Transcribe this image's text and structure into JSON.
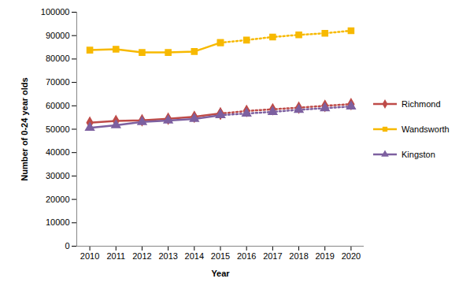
{
  "chart_data": {
    "type": "line",
    "x_label": "Year",
    "y_label": "Number of 0-24 year olds",
    "x": [
      2010,
      2011,
      2012,
      2013,
      2014,
      2015,
      2016,
      2017,
      2018,
      2019,
      2020
    ],
    "xlim": [
      2009.5,
      2020.5
    ],
    "xticks": [
      2010,
      2011,
      2012,
      2013,
      2014,
      2015,
      2016,
      2017,
      2018,
      2019,
      2020
    ],
    "ylim": [
      0,
      100000
    ],
    "yticks": [
      0,
      10000,
      20000,
      30000,
      40000,
      50000,
      60000,
      70000,
      80000,
      90000,
      100000
    ],
    "grid": false,
    "legend": "right",
    "series": [
      {
        "name": "Richmond",
        "color": "#be4b48",
        "marker": "diamond",
        "line_style": "solid",
        "values": [
          52800,
          53500,
          53800,
          54500,
          55300,
          56700,
          null,
          null,
          null,
          null,
          null
        ]
      },
      {
        "name": "Richmond",
        "color": "#be4b48",
        "marker": "diamond",
        "line_style": "dotted",
        "values": [
          null,
          null,
          null,
          null,
          null,
          56700,
          57800,
          58500,
          59200,
          60000,
          60700
        ]
      },
      {
        "name": "Wandsworth",
        "color": "#f7b900",
        "marker": "square",
        "line_style": "solid",
        "values": [
          83800,
          84200,
          82800,
          82800,
          83200,
          87000,
          null,
          null,
          null,
          null,
          null
        ]
      },
      {
        "name": "Wandsworth",
        "color": "#f7b900",
        "marker": "square",
        "line_style": "dotted",
        "values": [
          null,
          null,
          null,
          null,
          null,
          87000,
          88100,
          89400,
          90300,
          91000,
          92100
        ]
      },
      {
        "name": "Kingston",
        "color": "#7d60a0",
        "marker": "triangle",
        "line_style": "solid",
        "values": [
          50600,
          51700,
          53100,
          53700,
          54400,
          56000,
          null,
          null,
          null,
          null,
          null
        ]
      },
      {
        "name": "Kingston",
        "color": "#7d60a0",
        "marker": "triangle",
        "line_style": "dotted",
        "values": [
          null,
          null,
          null,
          null,
          null,
          56000,
          56700,
          57400,
          58300,
          59000,
          59700
        ]
      }
    ]
  }
}
